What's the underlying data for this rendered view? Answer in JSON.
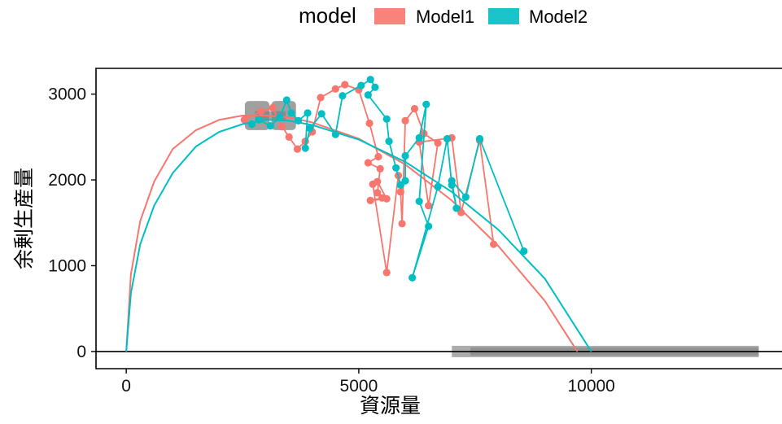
{
  "legend": {
    "title": "model",
    "items": [
      {
        "label": "Model1",
        "color": "#F8766D"
      },
      {
        "label": "Model2",
        "color": "#00BFC4"
      }
    ]
  },
  "chart_data": {
    "type": "scatter",
    "xlabel": "資源量",
    "ylabel": "余剰生産量",
    "xlim": [
      -650,
      14100
    ],
    "ylim": [
      -200,
      3300
    ],
    "xticks": [
      0,
      5000,
      10000
    ],
    "yticks": [
      0,
      1000,
      2000,
      3000
    ],
    "grid": false,
    "legend_position": "top",
    "zero_line_y": 0,
    "series": [
      {
        "name": "Model1",
        "color": "#F8766D",
        "curve": [
          [
            0,
            0
          ],
          [
            100,
            900
          ],
          [
            300,
            1520
          ],
          [
            600,
            1980
          ],
          [
            1000,
            2360
          ],
          [
            1500,
            2580
          ],
          [
            2000,
            2700
          ],
          [
            2500,
            2750
          ],
          [
            3000,
            2750
          ],
          [
            3500,
            2730
          ],
          [
            4000,
            2670
          ],
          [
            5000,
            2480
          ],
          [
            6000,
            2180
          ],
          [
            7000,
            1760
          ],
          [
            8000,
            1230
          ],
          [
            9000,
            590
          ],
          [
            9700,
            0
          ]
        ],
        "points": [
          [
            2540,
            2700
          ],
          [
            2900,
            2800
          ],
          [
            3150,
            2840
          ],
          [
            3350,
            2620
          ],
          [
            3500,
            2500
          ],
          [
            3680,
            2360
          ],
          [
            3850,
            2450
          ],
          [
            4000,
            2560
          ],
          [
            4180,
            2960
          ],
          [
            4500,
            3060
          ],
          [
            4700,
            3110
          ],
          [
            5000,
            3050
          ],
          [
            5230,
            2660
          ],
          [
            5420,
            2270
          ],
          [
            5200,
            2200
          ],
          [
            5460,
            2130
          ],
          [
            5400,
            1850
          ],
          [
            5500,
            1790
          ],
          [
            5250,
            1760
          ],
          [
            5600,
            1780
          ],
          [
            5400,
            1980
          ],
          [
            5300,
            1950
          ],
          [
            5600,
            920
          ],
          [
            5850,
            2050
          ],
          [
            5900,
            1860
          ],
          [
            5930,
            1490
          ],
          [
            6000,
            2690
          ],
          [
            6200,
            2830
          ],
          [
            6400,
            2540
          ],
          [
            6700,
            2430
          ],
          [
            6500,
            1700
          ],
          [
            6300,
            2440
          ],
          [
            7000,
            2490
          ],
          [
            7200,
            1620
          ],
          [
            7600,
            2460
          ],
          [
            7900,
            1250
          ]
        ]
      },
      {
        "name": "Model2",
        "color": "#00BFC4",
        "curve": [
          [
            0,
            0
          ],
          [
            100,
            680
          ],
          [
            300,
            1250
          ],
          [
            600,
            1700
          ],
          [
            1000,
            2080
          ],
          [
            1500,
            2390
          ],
          [
            2000,
            2560
          ],
          [
            2500,
            2650
          ],
          [
            3000,
            2700
          ],
          [
            3500,
            2690
          ],
          [
            4000,
            2640
          ],
          [
            5000,
            2470
          ],
          [
            6000,
            2210
          ],
          [
            7000,
            1860
          ],
          [
            8000,
            1420
          ],
          [
            9000,
            850
          ],
          [
            10000,
            0
          ]
        ],
        "points": [
          [
            2700,
            2650
          ],
          [
            2850,
            2700
          ],
          [
            3100,
            2630
          ],
          [
            3300,
            2730
          ],
          [
            3450,
            2930
          ],
          [
            3550,
            2780
          ],
          [
            3700,
            2690
          ],
          [
            3900,
            2780
          ],
          [
            3850,
            2370
          ],
          [
            3950,
            2600
          ],
          [
            4200,
            2770
          ],
          [
            4500,
            2530
          ],
          [
            4650,
            2980
          ],
          [
            5050,
            3100
          ],
          [
            5250,
            3170
          ],
          [
            5350,
            3080
          ],
          [
            5200,
            2990
          ],
          [
            5600,
            2710
          ],
          [
            5650,
            2450
          ],
          [
            5800,
            2140
          ],
          [
            5900,
            1940
          ],
          [
            6000,
            1990
          ],
          [
            6000,
            2280
          ],
          [
            6300,
            2490
          ],
          [
            6450,
            2880
          ],
          [
            6300,
            1750
          ],
          [
            6500,
            1460
          ],
          [
            6150,
            860
          ],
          [
            6700,
            1920
          ],
          [
            6900,
            2480
          ],
          [
            7000,
            1940
          ],
          [
            7100,
            1670
          ],
          [
            7000,
            1990
          ],
          [
            7300,
            1800
          ],
          [
            7600,
            2480
          ],
          [
            8550,
            1170
          ]
        ]
      }
    ],
    "annotations": [
      {
        "type": "horizontal-bar",
        "x_from": 7000,
        "x_to": 13600,
        "y": 0,
        "color": "#808080"
      },
      {
        "type": "rounded-block",
        "x_from": 2550,
        "x_to": 3650,
        "y_from": 2580,
        "y_to": 2920,
        "color": "#808080"
      }
    ]
  }
}
